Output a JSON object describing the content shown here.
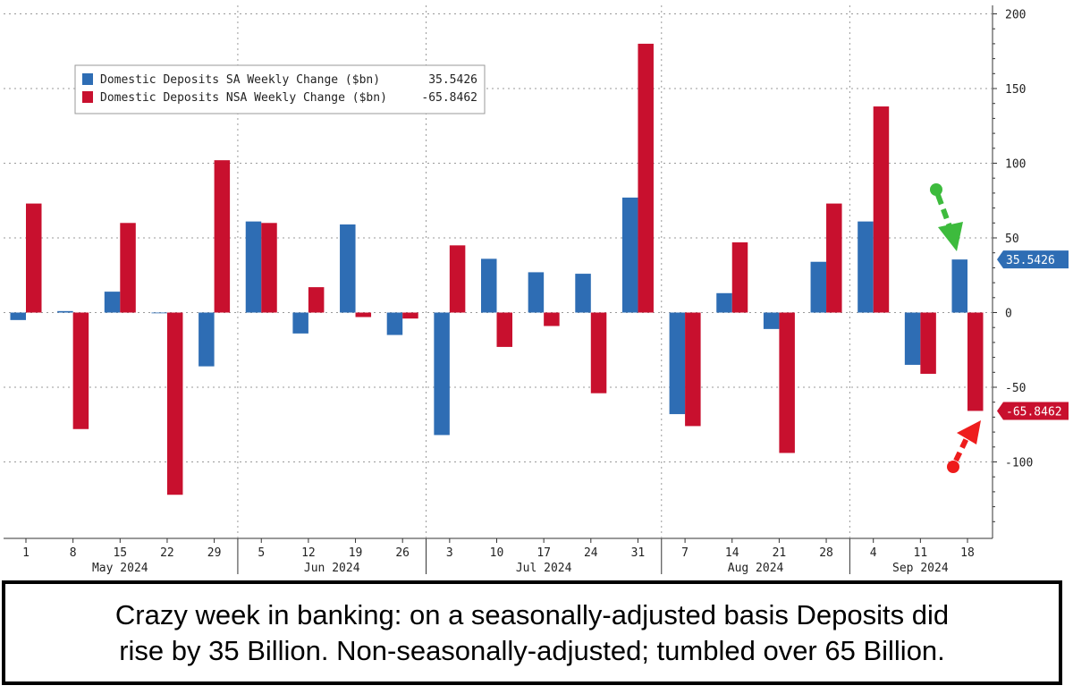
{
  "chart_data": {
    "type": "bar",
    "categories": [
      "1",
      "8",
      "15",
      "22",
      "29",
      "5",
      "12",
      "19",
      "26",
      "3",
      "10",
      "17",
      "24",
      "31",
      "7",
      "14",
      "21",
      "28",
      "4",
      "11",
      "18"
    ],
    "months": [
      {
        "label": "May 2024",
        "start": 0,
        "end": 4
      },
      {
        "label": "Jun 2024",
        "start": 5,
        "end": 8
      },
      {
        "label": "Jul 2024",
        "start": 9,
        "end": 13
      },
      {
        "label": "Aug 2024",
        "start": 14,
        "end": 17
      },
      {
        "label": "Sep 2024",
        "start": 18,
        "end": 20
      }
    ],
    "series": [
      {
        "name": "Domestic Deposits SA Weekly Change ($bn)",
        "latest": "35.5426",
        "color": "#2e6db4",
        "values": [
          -5,
          1,
          14,
          0,
          -36,
          61,
          -14,
          59,
          -15,
          -82,
          36,
          27,
          26,
          77,
          -68,
          13,
          -11,
          34,
          61,
          -35,
          35.5426
        ]
      },
      {
        "name": "Domestic Deposits NSA Weekly Change ($bn)",
        "latest": "-65.8462",
        "color": "#c8102e",
        "values": [
          73,
          -78,
          60,
          -122,
          102,
          60,
          17,
          -3,
          -4,
          45,
          -23,
          -9,
          -54,
          180,
          -76,
          47,
          -94,
          73,
          138,
          -41,
          -65.8462
        ]
      }
    ],
    "y_ticks": [
      200,
      150,
      100,
      50,
      0,
      -50,
      -100
    ],
    "ylim": [
      -150,
      205
    ],
    "y_axis_side": "right",
    "grid": true,
    "legend_position": "top-left",
    "value_tags": [
      {
        "text": "35.5426",
        "value": 35.5426,
        "color": "#2e6db4"
      },
      {
        "text": "-65.8462",
        "value": -65.8462,
        "color": "#c8102e"
      }
    ],
    "annotations": [
      {
        "type": "arrow",
        "color": "#3dbb3d",
        "points_to": "SA Sep 18"
      },
      {
        "type": "arrow",
        "color": "#ee1c1c",
        "points_to": "NSA Sep 18"
      }
    ]
  },
  "caption": {
    "line1": "Crazy week in banking: on a seasonally-adjusted basis Deposits did",
    "line2": "rise by 35 Billion. Non-seasonally-adjusted; tumbled over 65 Billion."
  }
}
